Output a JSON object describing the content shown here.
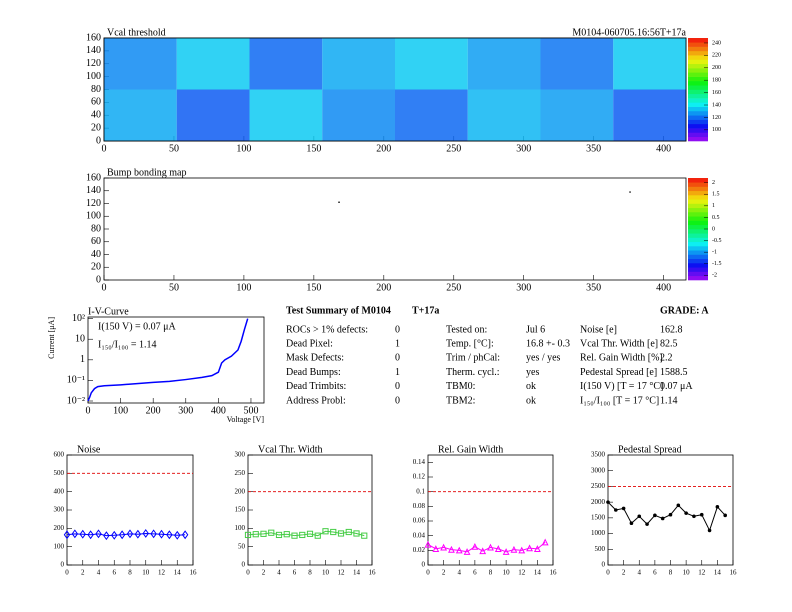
{
  "chart_data": [
    {
      "type": "heatmap",
      "title": "Vcal threshold",
      "subtitle": "M0104-060705.16:56T+17a",
      "xbins": [
        0,
        52,
        104,
        156,
        208,
        260,
        312,
        364,
        416
      ],
      "ybins": [
        0,
        80,
        160
      ],
      "values": [
        [
          130,
          118,
          135,
          125,
          120,
          132,
          128,
          118
        ],
        [
          125,
          135,
          120,
          130,
          135,
          128,
          122,
          135
        ]
      ],
      "xlim": [
        0,
        416
      ],
      "ylim": [
        0,
        160
      ],
      "xticks": [
        0,
        50,
        100,
        150,
        200,
        250,
        300,
        350,
        400
      ],
      "yticks": [
        0,
        20,
        40,
        60,
        80,
        100,
        120,
        140,
        160
      ],
      "zlim": [
        82,
        248
      ],
      "zticks": [
        100,
        120,
        140,
        160,
        180,
        200,
        220,
        240
      ]
    },
    {
      "type": "scatter",
      "title": "Bump bonding map",
      "x": [
        168,
        376
      ],
      "y": [
        122,
        138
      ],
      "color": "#000000",
      "xlim": [
        0,
        416
      ],
      "ylim": [
        0,
        160
      ],
      "xticks": [
        0,
        50,
        100,
        150,
        200,
        250,
        300,
        350,
        400
      ],
      "yticks": [
        0,
        20,
        40,
        60,
        80,
        100,
        120,
        140,
        160
      ],
      "zlim": [
        -2.2,
        2.2
      ],
      "zticks": [
        -2,
        -1.5,
        -1,
        -0.5,
        0,
        0.5,
        1,
        1.5,
        2
      ]
    },
    {
      "type": "line",
      "title": "I-V-Curve",
      "xlabel": "Voltage [V]",
      "ylabel": "Current [μA]",
      "annotations": [
        "I(150 V) = 0.07 μA",
        "I₁₅₀/I₁₀₀ = 1.14"
      ],
      "x": [
        0,
        5,
        10,
        20,
        30,
        50,
        100,
        150,
        200,
        250,
        300,
        350,
        380,
        400,
        410,
        420,
        440,
        460,
        470,
        480,
        490
      ],
      "values": [
        0.01,
        0.015,
        0.025,
        0.04,
        0.05,
        0.055,
        0.061,
        0.07,
        0.08,
        0.09,
        0.11,
        0.14,
        0.17,
        0.25,
        0.7,
        1.0,
        1.5,
        3,
        8,
        30,
        100
      ],
      "color": "#0000ff",
      "ylog": true,
      "xlim": [
        0,
        540
      ],
      "ylim": [
        0.008,
        120
      ],
      "xticks": [
        0,
        100,
        200,
        300,
        400,
        500
      ],
      "yticks": [
        {
          "value": 0.01,
          "label": "10⁻²"
        },
        {
          "value": 0.1,
          "label": "10⁻¹"
        },
        1,
        10,
        {
          "value": 100,
          "label": "10²"
        }
      ]
    },
    {
      "type": "line",
      "title": "Noise",
      "marker": "diamond",
      "color": "#0000ff",
      "threshold": 500,
      "x": [
        0,
        1,
        2,
        3,
        4,
        5,
        6,
        7,
        8,
        9,
        10,
        11,
        12,
        13,
        14,
        15
      ],
      "values": [
        165,
        170,
        168,
        165,
        170,
        160,
        162,
        165,
        170,
        168,
        172,
        170,
        168,
        165,
        162,
        165
      ],
      "xlim": [
        0,
        16
      ],
      "ylim": [
        0,
        600
      ],
      "xticks": [
        0,
        2,
        4,
        6,
        8,
        10,
        12,
        14,
        16
      ],
      "yticks": [
        0,
        100,
        200,
        300,
        400,
        500,
        600
      ]
    },
    {
      "type": "line",
      "title": "Vcal Thr. Width",
      "marker": "square",
      "color": "#44cc44",
      "threshold": 200,
      "x": [
        0,
        1,
        2,
        3,
        4,
        5,
        6,
        7,
        8,
        9,
        10,
        11,
        12,
        13,
        14,
        15
      ],
      "values": [
        82,
        84,
        85,
        88,
        82,
        84,
        80,
        82,
        85,
        80,
        92,
        90,
        86,
        90,
        86,
        80
      ],
      "xlim": [
        0,
        16
      ],
      "ylim": [
        0,
        300
      ],
      "xticks": [
        0,
        2,
        4,
        6,
        8,
        10,
        12,
        14,
        16
      ],
      "yticks": [
        0,
        50,
        100,
        150,
        200,
        250,
        300
      ]
    },
    {
      "type": "line",
      "title": "Rel. Gain Width",
      "marker": "triangle",
      "color": "#ff00ff",
      "threshold": 0.1,
      "x": [
        0,
        1,
        2,
        3,
        4,
        5,
        6,
        7,
        8,
        9,
        10,
        11,
        12,
        13,
        14,
        15
      ],
      "values": [
        0.028,
        0.022,
        0.024,
        0.021,
        0.02,
        0.018,
        0.025,
        0.019,
        0.024,
        0.022,
        0.018,
        0.021,
        0.02,
        0.023,
        0.022,
        0.031
      ],
      "xlim": [
        0,
        16
      ],
      "ylim": [
        0,
        0.15
      ],
      "xticks": [
        0,
        2,
        4,
        6,
        8,
        10,
        12,
        14,
        16
      ],
      "yticks": [
        0,
        0.02,
        0.04,
        0.06,
        0.08,
        0.1,
        0.12,
        0.14
      ]
    },
    {
      "type": "line",
      "title": "Pedestal Spread",
      "marker": "circle",
      "color": "#000000",
      "threshold": 2500,
      "x": [
        0,
        1,
        2,
        3,
        4,
        5,
        6,
        7,
        8,
        9,
        10,
        11,
        12,
        13,
        14,
        15
      ],
      "values": [
        2000,
        1750,
        1800,
        1330,
        1550,
        1300,
        1580,
        1480,
        1600,
        1900,
        1650,
        1550,
        1600,
        1100,
        1850,
        1580
      ],
      "xlim": [
        0,
        16
      ],
      "ylim": [
        0,
        3500
      ],
      "xticks": [
        0,
        2,
        4,
        6,
        8,
        10,
        12,
        14,
        16
      ],
      "yticks": [
        0,
        500,
        1000,
        1500,
        2000,
        2500,
        3000,
        3500
      ]
    }
  ],
  "summary": {
    "title": "Test Summary of M0104",
    "tag": "T+17a",
    "grade": "GRADE:  A",
    "defects": [
      [
        "ROCs > 1% defects:",
        0
      ],
      [
        "Dead Pixel:",
        1
      ],
      [
        "Mask Defects:",
        0
      ],
      [
        "Dead Bumps:",
        1
      ],
      [
        "Dead Trimbits:",
        0
      ],
      [
        "Address Probl:",
        0
      ]
    ],
    "conditions": [
      [
        "Tested on:",
        "Jul 6"
      ],
      [
        "Temp. [°C]:",
        "16.8 +- 0.3"
      ],
      [
        "Trim / phCal:",
        "yes / yes"
      ],
      [
        "Therm. cycl.:",
        "yes"
      ],
      [
        "TBM0:",
        "ok"
      ],
      [
        "TBM2:",
        "ok"
      ]
    ],
    "results": [
      [
        "Noise [e]",
        162.8
      ],
      [
        "Vcal Thr. Width [e]",
        82.5
      ],
      [
        "Rel. Gain Width [%]",
        2.2
      ],
      [
        "Pedestal Spread [e]",
        1588.5
      ],
      [
        "I(150 V) [T = 17 °C]",
        "0.07 μA"
      ],
      [
        "I₁₅₀/I₁₀₀  [T = 17 °C]",
        1.14
      ]
    ]
  }
}
